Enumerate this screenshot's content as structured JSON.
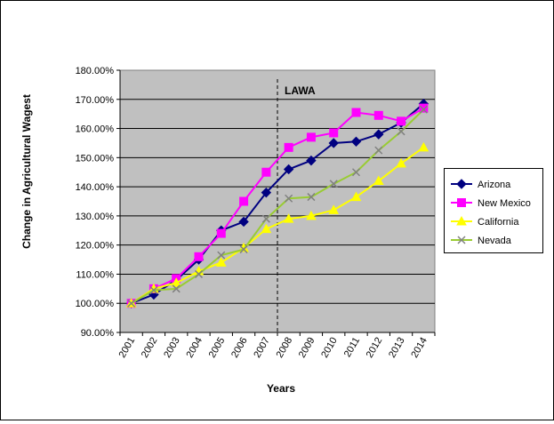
{
  "chart_data": {
    "type": "line",
    "title": "",
    "xlabel": "Years",
    "ylabel": "Change in Agricultural Wagest",
    "categories": [
      "2001",
      "2002",
      "2003",
      "2004",
      "2005",
      "2006",
      "2007",
      "2008",
      "2009",
      "2010",
      "2011",
      "2012",
      "2013",
      "2014"
    ],
    "ylim": [
      0.9,
      1.8
    ],
    "yticks": [
      "90.00%",
      "100.00%",
      "110.00%",
      "120.00%",
      "130.00%",
      "140.00%",
      "150.00%",
      "160.00%",
      "170.00%",
      "180.00%"
    ],
    "grid": "horizontal",
    "legend_position": "right",
    "plot_background": "#c0c0c0",
    "annotation": {
      "label": "LAWA",
      "between": [
        "2007",
        "2008"
      ],
      "style": "dashed vertical line"
    },
    "series": [
      {
        "name": "Arizona",
        "color": "#000080",
        "marker": "diamond",
        "values": [
          1.0,
          1.03,
          1.08,
          1.15,
          1.25,
          1.28,
          1.38,
          1.46,
          1.49,
          1.55,
          1.555,
          1.58,
          1.62,
          1.685
        ]
      },
      {
        "name": "New Mexico",
        "color": "#ff00ff",
        "marker": "square",
        "values": [
          1.0,
          1.05,
          1.085,
          1.16,
          1.24,
          1.35,
          1.45,
          1.535,
          1.57,
          1.585,
          1.655,
          1.645,
          1.625,
          1.67
        ]
      },
      {
        "name": "California",
        "color": "#ffff00",
        "marker": "triangle",
        "values": [
          1.0,
          1.05,
          1.07,
          1.11,
          1.14,
          1.19,
          1.255,
          1.29,
          1.3,
          1.32,
          1.365,
          1.42,
          1.48,
          1.535
        ]
      },
      {
        "name": "Nevada",
        "color": "#99cc33",
        "marker": "x",
        "values": [
          1.0,
          1.045,
          1.05,
          1.1,
          1.165,
          1.185,
          1.29,
          1.36,
          1.365,
          1.41,
          1.45,
          1.525,
          1.59,
          1.665
        ]
      }
    ]
  }
}
